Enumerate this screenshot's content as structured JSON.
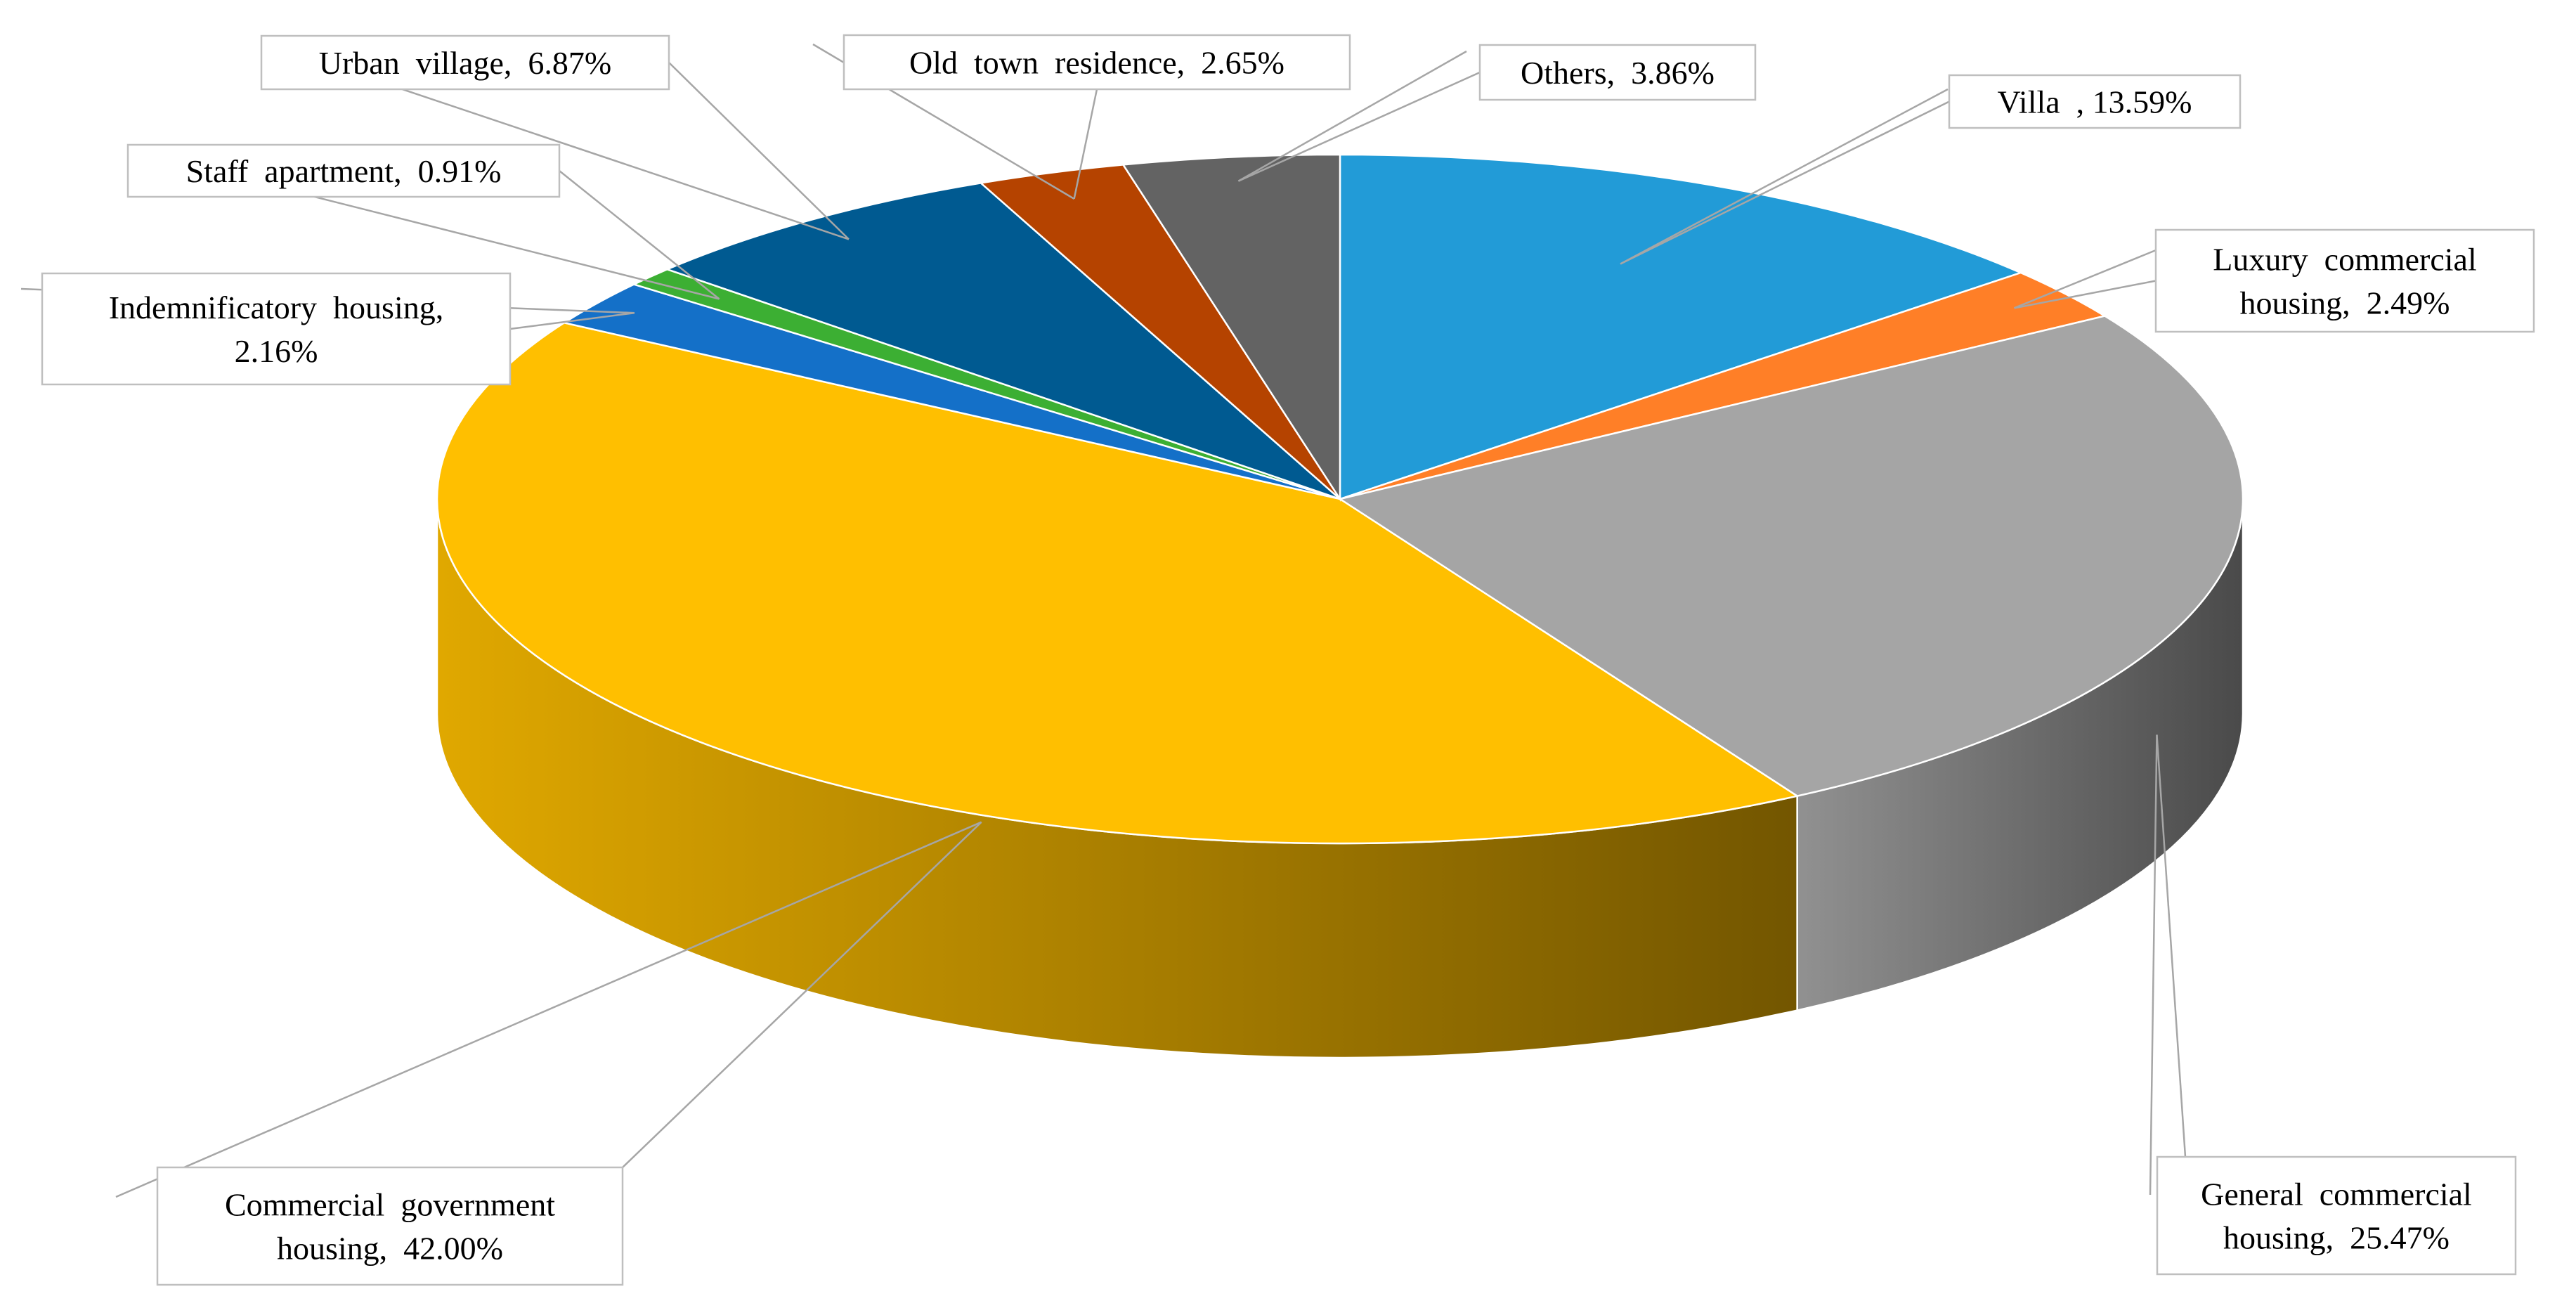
{
  "chart_data": {
    "type": "pie",
    "title": "",
    "style": "3d",
    "slices": [
      {
        "label": "Villa",
        "value_text": "13.59%",
        "value": 13.59,
        "color": "#229BD7",
        "label_lines": [
          "Villa  , 13.59%"
        ]
      },
      {
        "label": "Luxury commercial housing",
        "value_text": "2.49%",
        "value": 2.49,
        "color": "#FF7F27",
        "label_lines": [
          "Luxury  commercial",
          "housing,  2.49%"
        ]
      },
      {
        "label": "General commercial housing",
        "value_text": "25.47%",
        "value": 25.47,
        "color": "#A5A5A5",
        "label_lines": [
          "General  commercial",
          "housing,  25.47%"
        ]
      },
      {
        "label": "Commercial government housing",
        "value_text": "42.00%",
        "value": 42.0,
        "color": "#FFBF00",
        "label_lines": [
          "Commercial  government",
          "housing,  42.00%"
        ]
      },
      {
        "label": "Indemnificatory housing",
        "value_text": "2.16%",
        "value": 2.16,
        "color": "#1470C8",
        "label_lines": [
          "Indemnificatory  housing,",
          "2.16%"
        ]
      },
      {
        "label": "Staff apartment",
        "value_text": "0.91%",
        "value": 0.91,
        "color": "#3CAF33",
        "label_lines": [
          "Staff  apartment,  0.91%"
        ]
      },
      {
        "label": "Urban village",
        "value_text": "6.87%",
        "value": 6.87,
        "color": "#005A91",
        "label_lines": [
          "Urban  village,  6.87%"
        ]
      },
      {
        "label": "Old town residence",
        "value_text": "2.65%",
        "value": 2.65,
        "color": "#B54300",
        "label_lines": [
          "Old  town  residence,  2.65%"
        ]
      },
      {
        "label": "Others",
        "value_text": "3.86%",
        "value": 3.86,
        "color": "#636363",
        "label_lines": [
          "Others,  3.86%"
        ]
      }
    ]
  }
}
